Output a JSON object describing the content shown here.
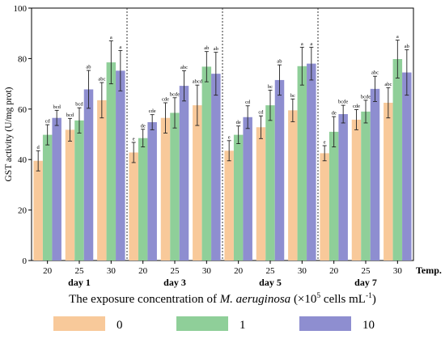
{
  "chart_data": {
    "type": "bar",
    "ylabel": "GST activity (U/mg prot)",
    "ylim": [
      0,
      100
    ],
    "yticks": [
      0,
      20,
      40,
      60,
      80,
      100
    ],
    "temp_label": "Temp.",
    "x_title_parts": [
      "The exposure concentration of ",
      "M. aeruginosa",
      " (×10",
      "5",
      " cells mL",
      "-1",
      ")"
    ],
    "colors": [
      "#f8c99a",
      "#8fcf99",
      "#8e8ed0"
    ],
    "series_names": [
      "0",
      "1",
      "10"
    ],
    "days": [
      {
        "label": "day 1",
        "temps": [
          {
            "temp": "20",
            "values": [
              39.5,
              49.8,
              56.5
            ],
            "errors": [
              4.0,
              4.0,
              3.0
            ],
            "letters": [
              "d",
              "cd",
              "bcd"
            ]
          },
          {
            "temp": "25",
            "values": [
              51.8,
              55.5,
              67.8
            ],
            "errors": [
              4.5,
              5.0,
              7.5
            ],
            "letters": [
              "bcd",
              "bcd",
              "ab"
            ]
          },
          {
            "temp": "30",
            "values": [
              63.5,
              78.5,
              75.2
            ],
            "errors": [
              7.0,
              8.5,
              8.0
            ],
            "letters": [
              "abc",
              "a",
              "a"
            ]
          }
        ]
      },
      {
        "label": "day 3",
        "temps": [
          {
            "temp": "20",
            "values": [
              42.8,
              48.5,
              54.8
            ],
            "errors": [
              4.0,
              3.5,
              3.0
            ],
            "letters": [
              "e",
              "de",
              "cde"
            ]
          },
          {
            "temp": "25",
            "values": [
              56.5,
              58.5,
              69.2
            ],
            "errors": [
              6.0,
              6.0,
              6.0
            ],
            "letters": [
              "cde",
              "bcde",
              "abc"
            ]
          },
          {
            "temp": "30",
            "values": [
              61.5,
              76.8,
              74.0
            ],
            "errors": [
              8.0,
              6.0,
              8.5
            ],
            "letters": [
              "abcd",
              "ab",
              "ab"
            ]
          }
        ]
      },
      {
        "label": "day 5",
        "temps": [
          {
            "temp": "20",
            "values": [
              43.5,
              49.8,
              56.8
            ],
            "errors": [
              4.0,
              3.5,
              4.5
            ],
            "letters": [
              "e",
              "de",
              "cd"
            ]
          },
          {
            "temp": "25",
            "values": [
              52.8,
              61.5,
              71.5
            ],
            "errors": [
              4.5,
              6.0,
              6.0
            ],
            "letters": [
              "cd",
              "bc",
              "ab"
            ]
          },
          {
            "temp": "30",
            "values": [
              59.5,
              77.0,
              78.0
            ],
            "errors": [
              4.5,
              7.5,
              6.5
            ],
            "letters": [
              "bc",
              "a",
              "a"
            ]
          }
        ]
      },
      {
        "label": "day 7",
        "temps": [
          {
            "temp": "20",
            "values": [
              42.5,
              51.0,
              58.0
            ],
            "errors": [
              3.0,
              6.0,
              3.5
            ],
            "letters": [
              "e",
              "de",
              "bcde"
            ]
          },
          {
            "temp": "25",
            "values": [
              55.8,
              59.0,
              68.0
            ],
            "errors": [
              4.0,
              4.5,
              5.0
            ],
            "letters": [
              "cde",
              "bcde",
              "abc"
            ]
          },
          {
            "temp": "30",
            "values": [
              62.5,
              79.8,
              74.5
            ],
            "errors": [
              6.0,
              7.5,
              9.0
            ],
            "letters": [
              "abc",
              "a",
              "ab"
            ]
          }
        ]
      }
    ]
  }
}
